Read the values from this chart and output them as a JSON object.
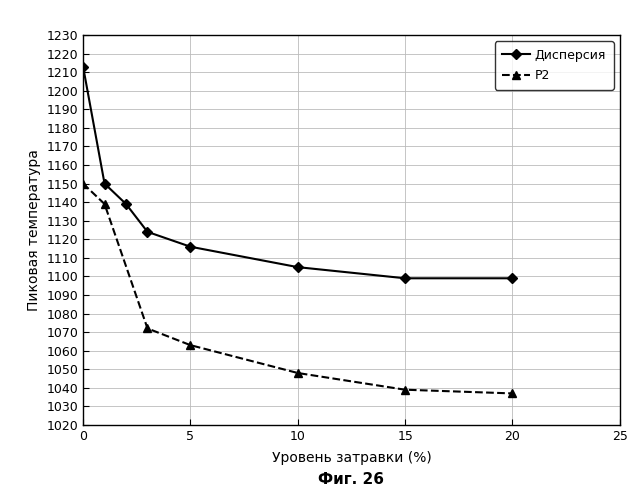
{
  "dispersion_x": [
    0,
    1,
    2,
    3,
    5,
    10,
    15,
    20
  ],
  "dispersion_y": [
    1213,
    1150,
    1139,
    1124,
    1116,
    1105,
    1099,
    1099
  ],
  "p2_x": [
    0,
    1,
    3,
    5,
    10,
    15,
    20
  ],
  "p2_y": [
    1150,
    1139,
    1072,
    1063,
    1048,
    1039,
    1037
  ],
  "xlim": [
    0,
    25
  ],
  "ylim": [
    1020,
    1230
  ],
  "xticks": [
    0,
    5,
    10,
    15,
    20,
    25
  ],
  "yticks": [
    1020,
    1030,
    1040,
    1050,
    1060,
    1070,
    1080,
    1090,
    1100,
    1110,
    1120,
    1130,
    1140,
    1150,
    1160,
    1170,
    1180,
    1190,
    1200,
    1210,
    1220,
    1230
  ],
  "xlabel": "Уровень затравки (%)",
  "ylabel": "Пиковая температура",
  "legend_dispersion": "Дисперсия",
  "legend_p2": "Р2",
  "caption": "Фиг. 26",
  "line_color": "#000000",
  "bg_color": "#ffffff",
  "grid_color": "#bbbbbb"
}
